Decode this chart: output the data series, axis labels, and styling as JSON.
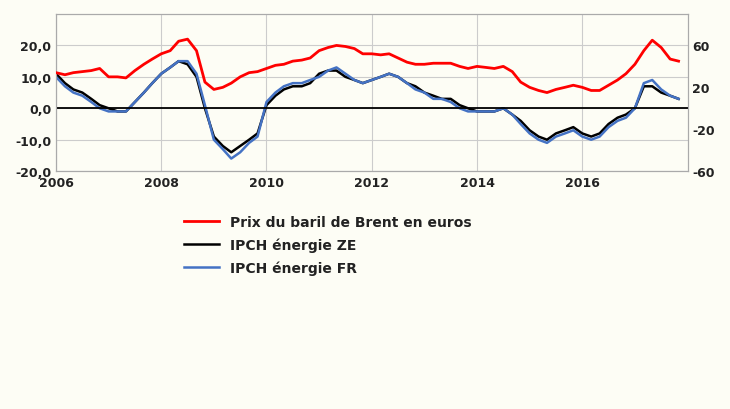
{
  "background_color": "#FDFDF5",
  "grid_color": "#CCCCCC",
  "left_ylim": [
    -20,
    30
  ],
  "left_yticks": [
    -20,
    -10,
    0,
    10,
    20
  ],
  "left_yticklabels": [
    "-20,0",
    "-10,0",
    "0,0",
    "10,0",
    "20,0"
  ],
  "right_ylim": [
    -60,
    90
  ],
  "right_yticks": [
    -60,
    -20,
    20,
    60
  ],
  "right_yticklabels": [
    "-60",
    "-20",
    "20",
    "60"
  ],
  "xlim": [
    2006,
    2018
  ],
  "xticks": [
    2006,
    2008,
    2010,
    2012,
    2014,
    2016
  ],
  "xticklabels": [
    "2006",
    "2008",
    "2010",
    "2012",
    "2014",
    "2016"
  ],
  "legend_items": [
    {
      "label": "Prix du baril de Brent en euros",
      "color": "#FF0000",
      "lw": 2.0
    },
    {
      "label": "IPCH énergie ZE",
      "color": "#000000",
      "lw": 1.8
    },
    {
      "label": "IPCH énergie FR",
      "color": "#4472C4",
      "lw": 1.8
    }
  ],
  "brent_x": [
    2006.0,
    2006.17,
    2006.33,
    2006.5,
    2006.67,
    2006.83,
    2007.0,
    2007.17,
    2007.33,
    2007.5,
    2007.67,
    2007.83,
    2008.0,
    2008.17,
    2008.33,
    2008.5,
    2008.67,
    2008.83,
    2009.0,
    2009.17,
    2009.33,
    2009.5,
    2009.67,
    2009.83,
    2010.0,
    2010.17,
    2010.33,
    2010.5,
    2010.67,
    2010.83,
    2011.0,
    2011.17,
    2011.33,
    2011.5,
    2011.67,
    2011.83,
    2012.0,
    2012.17,
    2012.33,
    2012.5,
    2012.67,
    2012.83,
    2013.0,
    2013.17,
    2013.33,
    2013.5,
    2013.67,
    2013.83,
    2014.0,
    2014.17,
    2014.33,
    2014.5,
    2014.67,
    2014.83,
    2015.0,
    2015.17,
    2015.33,
    2015.5,
    2015.67,
    2015.83,
    2016.0,
    2016.17,
    2016.33,
    2016.5,
    2016.67,
    2016.83,
    2017.0,
    2017.17,
    2017.33,
    2017.5,
    2017.67,
    2017.83
  ],
  "brent_y": [
    34,
    32,
    34,
    35,
    36,
    38,
    30,
    30,
    29,
    36,
    42,
    47,
    52,
    55,
    64,
    66,
    55,
    25,
    18,
    20,
    24,
    30,
    34,
    35,
    38,
    41,
    42,
    45,
    46,
    48,
    55,
    58,
    60,
    59,
    57,
    52,
    52,
    51,
    52,
    48,
    44,
    42,
    42,
    43,
    43,
    43,
    40,
    38,
    40,
    39,
    38,
    40,
    35,
    25,
    20,
    17,
    15,
    18,
    20,
    22,
    20,
    17,
    17,
    22,
    27,
    33,
    42,
    55,
    65,
    58,
    47,
    45
  ],
  "ze_x": [
    2006.0,
    2006.17,
    2006.33,
    2006.5,
    2006.67,
    2006.83,
    2007.0,
    2007.17,
    2007.33,
    2007.5,
    2007.67,
    2007.83,
    2008.0,
    2008.17,
    2008.33,
    2008.5,
    2008.67,
    2008.83,
    2009.0,
    2009.17,
    2009.33,
    2009.5,
    2009.67,
    2009.83,
    2010.0,
    2010.17,
    2010.33,
    2010.5,
    2010.67,
    2010.83,
    2011.0,
    2011.17,
    2011.33,
    2011.5,
    2011.67,
    2011.83,
    2012.0,
    2012.17,
    2012.33,
    2012.5,
    2012.67,
    2012.83,
    2013.0,
    2013.17,
    2013.33,
    2013.5,
    2013.67,
    2013.83,
    2014.0,
    2014.17,
    2014.33,
    2014.5,
    2014.67,
    2014.83,
    2015.0,
    2015.17,
    2015.33,
    2015.5,
    2015.67,
    2015.83,
    2016.0,
    2016.17,
    2016.33,
    2016.5,
    2016.67,
    2016.83,
    2017.0,
    2017.17,
    2017.33,
    2017.5,
    2017.67,
    2017.83
  ],
  "ze_y": [
    11,
    8,
    6,
    5,
    3,
    1,
    0,
    -1,
    -1,
    2,
    5,
    8,
    11,
    13,
    15,
    14,
    10,
    0,
    -9,
    -12,
    -14,
    -12,
    -10,
    -8,
    1,
    4,
    6,
    7,
    7,
    8,
    11,
    12,
    12,
    10,
    9,
    8,
    9,
    10,
    11,
    10,
    8,
    7,
    5,
    4,
    3,
    3,
    1,
    0,
    -1,
    -1,
    -1,
    0,
    -2,
    -4,
    -7,
    -9,
    -10,
    -8,
    -7,
    -6,
    -8,
    -9,
    -8,
    -5,
    -3,
    -2,
    0,
    7,
    7,
    5,
    4,
    3
  ],
  "fr_x": [
    2006.0,
    2006.17,
    2006.33,
    2006.5,
    2006.67,
    2006.83,
    2007.0,
    2007.17,
    2007.33,
    2007.5,
    2007.67,
    2007.83,
    2008.0,
    2008.17,
    2008.33,
    2008.5,
    2008.67,
    2008.83,
    2009.0,
    2009.17,
    2009.33,
    2009.5,
    2009.67,
    2009.83,
    2010.0,
    2010.17,
    2010.33,
    2010.5,
    2010.67,
    2010.83,
    2011.0,
    2011.17,
    2011.33,
    2011.5,
    2011.67,
    2011.83,
    2012.0,
    2012.17,
    2012.33,
    2012.5,
    2012.67,
    2012.83,
    2013.0,
    2013.17,
    2013.33,
    2013.5,
    2013.67,
    2013.83,
    2014.0,
    2014.17,
    2014.33,
    2014.5,
    2014.67,
    2014.83,
    2015.0,
    2015.17,
    2015.33,
    2015.5,
    2015.67,
    2015.83,
    2016.0,
    2016.17,
    2016.33,
    2016.5,
    2016.67,
    2016.83,
    2017.0,
    2017.17,
    2017.33,
    2017.5,
    2017.67,
    2017.83
  ],
  "fr_y": [
    10,
    7,
    5,
    4,
    2,
    0,
    -1,
    -1,
    -1,
    2,
    5,
    8,
    11,
    13,
    15,
    15,
    11,
    1,
    -10,
    -13,
    -16,
    -14,
    -11,
    -9,
    2,
    5,
    7,
    8,
    8,
    9,
    10,
    12,
    13,
    11,
    9,
    8,
    9,
    10,
    11,
    10,
    8,
    6,
    5,
    3,
    3,
    2,
    0,
    -1,
    -1,
    -1,
    -1,
    0,
    -2,
    -5,
    -8,
    -10,
    -11,
    -9,
    -8,
    -7,
    -9,
    -10,
    -9,
    -6,
    -4,
    -3,
    0,
    8,
    9,
    6,
    4,
    3
  ]
}
